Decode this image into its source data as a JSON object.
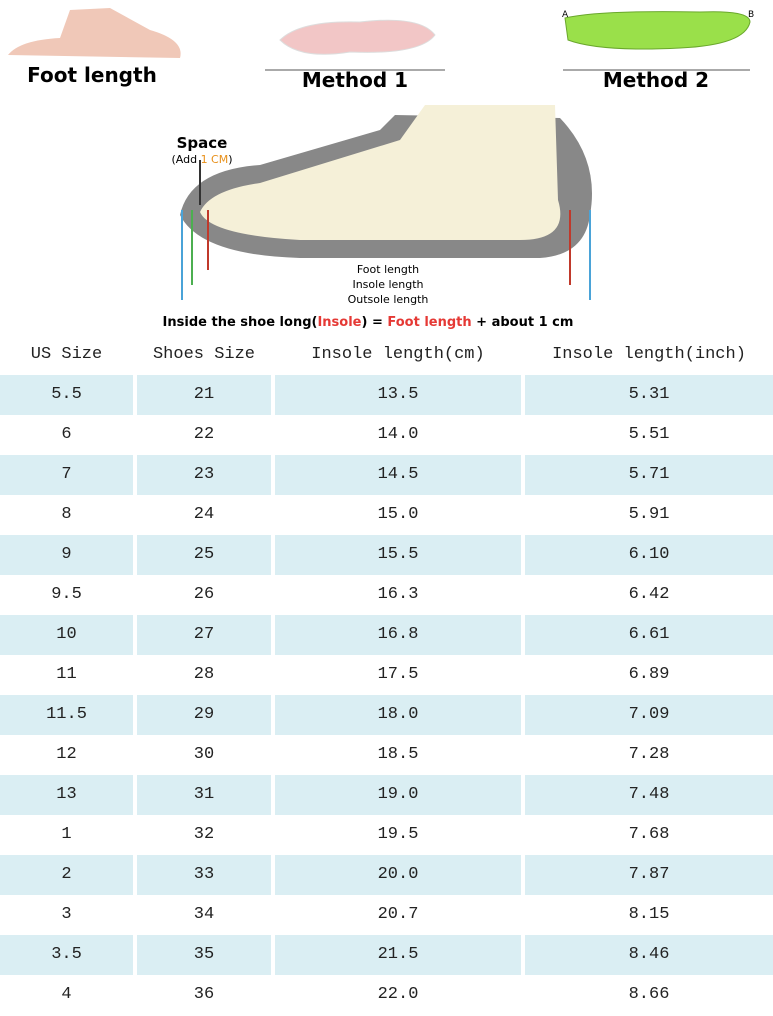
{
  "illustrations": {
    "foot_length": "Foot length",
    "method_1": "Method 1",
    "method_2": "Method 2",
    "point_a": "A",
    "point_b": "B",
    "space": "Space",
    "add_prefix": "(Add ",
    "add_value": "1 CM",
    "add_suffix": ")",
    "foot_length_line": "Foot length",
    "insole_length_line": "Insole length",
    "outsole_length_line": "Outsole length",
    "caption": {
      "prefix": "Inside the shoe long(",
      "insole": "Insole",
      "middle": ") = ",
      "foot": "Foot length",
      "suffix": " + about 1 cm"
    }
  },
  "table": {
    "header": [
      "US Size",
      "Shoes Size",
      "Insole length(cm)",
      "Insole length(inch)"
    ],
    "rows": [
      [
        "5.5",
        "21",
        "13.5",
        "5.31"
      ],
      [
        "6",
        "22",
        "14.0",
        "5.51"
      ],
      [
        "7",
        "23",
        "14.5",
        "5.71"
      ],
      [
        "8",
        "24",
        "15.0",
        "5.91"
      ],
      [
        "9",
        "25",
        "15.5",
        "6.10"
      ],
      [
        "9.5",
        "26",
        "16.3",
        "6.42"
      ],
      [
        "10",
        "27",
        "16.8",
        "6.61"
      ],
      [
        "11",
        "28",
        "17.5",
        "6.89"
      ],
      [
        "11.5",
        "29",
        "18.0",
        "7.09"
      ],
      [
        "12",
        "30",
        "18.5",
        "7.28"
      ],
      [
        "13",
        "31",
        "19.0",
        "7.48"
      ],
      [
        "1",
        "32",
        "19.5",
        "7.68"
      ],
      [
        "2",
        "33",
        "20.0",
        "7.87"
      ],
      [
        "3",
        "34",
        "20.7",
        "8.15"
      ],
      [
        "3.5",
        "35",
        "21.5",
        "8.46"
      ],
      [
        "4",
        "36",
        "22.0",
        "8.66"
      ]
    ]
  }
}
